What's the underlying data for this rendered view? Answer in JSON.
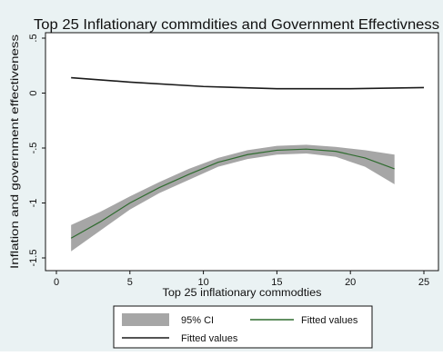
{
  "chart_data": {
    "type": "line",
    "title": "Top 25 Inflationary commdities and Government Effectivness",
    "xlabel": "Top 25 inflationary commodties",
    "ylabel": "Inflation and government effectiveness",
    "xlim": [
      0,
      25
    ],
    "ylim": [
      -1.5,
      0.5
    ],
    "xticks": [
      0,
      5,
      10,
      15,
      20,
      25
    ],
    "yticks": [
      -1.5,
      -1,
      -0.5,
      0,
      0.5
    ],
    "xtick_labels": [
      "0",
      "5",
      "10",
      "15",
      "20",
      "25"
    ],
    "ytick_labels": [
      "-1.5",
      "-1",
      "-.5",
      "0",
      ".5"
    ],
    "grid": false,
    "legend_position": "bottom",
    "series": [
      {
        "name": "Fitted values",
        "style": "line",
        "x": [
          1,
          5,
          10,
          15,
          20,
          25
        ],
        "y": [
          0.14,
          0.1,
          0.06,
          0.04,
          0.04,
          0.05
        ]
      },
      {
        "name": "Fitted values",
        "style": "line",
        "x": [
          1,
          3,
          5,
          7,
          9,
          11,
          13,
          15,
          17,
          19,
          21,
          23
        ],
        "y": [
          -1.32,
          -1.17,
          -1.0,
          -0.86,
          -0.74,
          -0.63,
          -0.56,
          -0.52,
          -0.51,
          -0.53,
          -0.59,
          -0.69
        ]
      },
      {
        "name": "95% CI",
        "style": "band",
        "x": [
          1,
          3,
          5,
          7,
          9,
          11,
          13,
          15,
          17,
          19,
          21,
          23
        ],
        "lower": [
          -1.44,
          -1.25,
          -1.06,
          -0.91,
          -0.79,
          -0.67,
          -0.6,
          -0.56,
          -0.55,
          -0.58,
          -0.67,
          -0.83
        ],
        "upper": [
          -1.2,
          -1.08,
          -0.94,
          -0.81,
          -0.69,
          -0.59,
          -0.52,
          -0.48,
          -0.47,
          -0.49,
          -0.52,
          -0.56
        ]
      }
    ],
    "legend": [
      {
        "label": "95% CI",
        "kind": "band"
      },
      {
        "label": "Fitted values",
        "kind": "line"
      },
      {
        "label": "Fitted values",
        "kind": "line"
      }
    ],
    "colors": {
      "background": "#eaf2f3",
      "plot_background": "#ffffff",
      "band": "#a6a6a6",
      "ci_line": "#2f6b2f",
      "line": "#1a1a1a"
    }
  }
}
